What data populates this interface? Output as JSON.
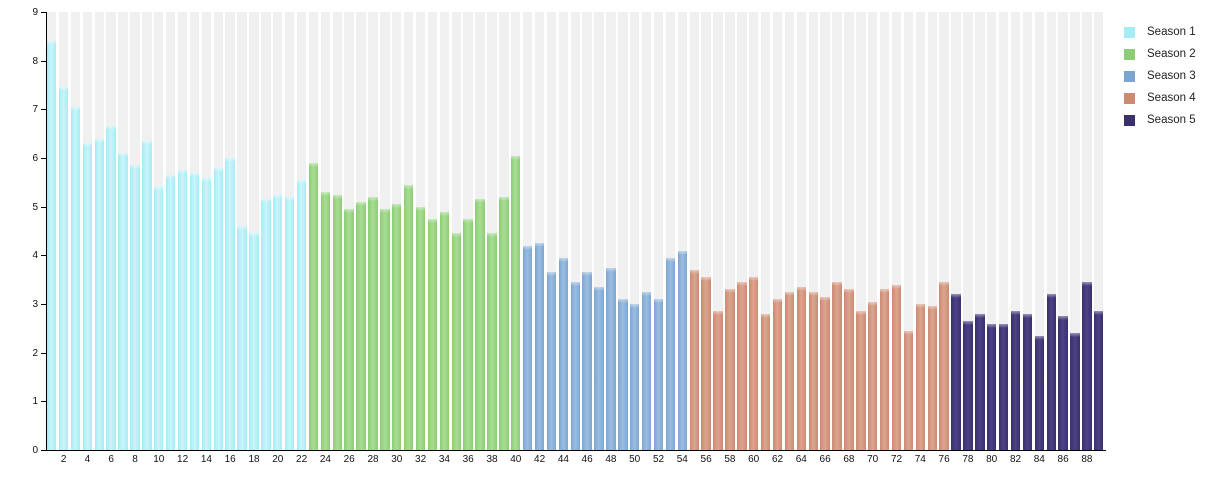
{
  "chart_data": {
    "type": "bar",
    "title": "",
    "xlabel": "",
    "ylabel": "",
    "ylim": [
      0,
      9
    ],
    "grid": "off",
    "legend_position": "top-right",
    "background_stripe_color": "#f0f0f0",
    "axis_color": "#000000",
    "tick_label_color": "#111111",
    "y_ticks": [
      "0",
      "1",
      "2",
      "3",
      "4",
      "5",
      "6",
      "7",
      "8",
      "9"
    ],
    "x_tick_labels": [
      "2",
      "4",
      "6",
      "8",
      "10",
      "12",
      "14",
      "16",
      "18",
      "20",
      "22",
      "24",
      "26",
      "28",
      "30",
      "32",
      "34",
      "36",
      "38",
      "40",
      "42",
      "44",
      "46",
      "48",
      "50",
      "52",
      "54",
      "56",
      "58",
      "60",
      "62",
      "64",
      "66",
      "68",
      "70",
      "72",
      "74",
      "76",
      "78",
      "80",
      "82",
      "84",
      "86",
      "88"
    ],
    "x_tick_episodes": [
      2,
      4,
      6,
      8,
      10,
      12,
      14,
      16,
      18,
      20,
      22,
      24,
      26,
      28,
      30,
      32,
      34,
      36,
      38,
      40,
      42,
      44,
      46,
      48,
      50,
      52,
      54,
      56,
      58,
      60,
      62,
      64,
      66,
      68,
      70,
      72,
      74,
      76,
      78,
      80,
      82,
      84,
      86,
      88
    ],
    "series": [
      {
        "name": "Season 1",
        "color": "#a5ecf4",
        "color_light": "#c9f5fa",
        "first_episode": 1,
        "values": [
          8.4,
          7.45,
          7.05,
          6.3,
          6.4,
          6.65,
          6.1,
          5.85,
          6.35,
          5.4,
          5.65,
          5.75,
          5.7,
          5.6,
          5.8,
          6.0,
          4.6,
          4.45,
          5.15,
          5.25,
          5.2,
          5.55
        ]
      },
      {
        "name": "Season 2",
        "color": "#8ccd75",
        "color_light": "#a9dd94",
        "first_episode": 23,
        "values": [
          5.9,
          5.3,
          5.25,
          4.95,
          5.1,
          5.2,
          4.95,
          5.05,
          5.45,
          5.0,
          4.75,
          4.9,
          4.45,
          4.75,
          5.15,
          4.45,
          5.2,
          6.05
        ]
      },
      {
        "name": "Season 3",
        "color": "#7ca6d1",
        "color_light": "#9bbde0",
        "first_episode": 41,
        "values": [
          4.2,
          4.25,
          3.65,
          3.95,
          3.45,
          3.65,
          3.35,
          3.75,
          3.1,
          3.0,
          3.25,
          3.1,
          3.95,
          4.1
        ]
      },
      {
        "name": "Season 4",
        "color": "#cc8a71",
        "color_light": "#dba590",
        "first_episode": 55,
        "values": [
          3.7,
          3.55,
          2.85,
          3.3,
          3.45,
          3.55,
          2.8,
          3.1,
          3.25,
          3.35,
          3.25,
          3.15,
          3.45,
          3.3,
          2.85,
          3.05,
          3.3,
          3.4,
          2.45,
          3.0,
          2.95,
          3.45
        ]
      },
      {
        "name": "Season 5",
        "color": "#39306c",
        "color_light": "#4c4286",
        "first_episode": 77,
        "values": [
          3.2,
          2.65,
          2.8,
          2.6,
          2.6,
          2.85,
          2.8,
          2.35,
          3.2,
          2.75,
          2.4,
          3.45,
          2.85
        ]
      }
    ]
  }
}
